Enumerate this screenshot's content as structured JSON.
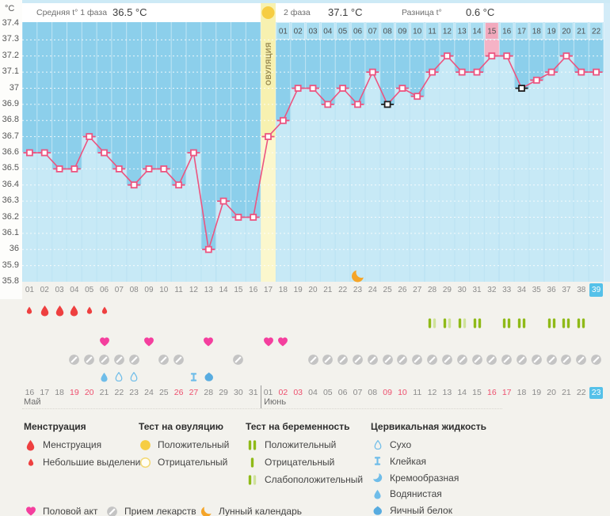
{
  "header": {
    "unit": "°C",
    "phase1_label": "Средняя t° 1 фаза",
    "phase1_value": "36.5 °C",
    "phase2_label": "2 фаза",
    "phase2_value": "37.1 °C",
    "diff_label": "Разница t°",
    "diff_value": "0.6 °C"
  },
  "chart_data": {
    "type": "line",
    "ylabel": "°C",
    "ylim": [
      35.8,
      37.4
    ],
    "yticks": [
      "37.4",
      "37.3",
      "37.2",
      "37.1",
      "37",
      "36.9",
      "36.8",
      "36.7",
      "36.6",
      "36.5",
      "36.4",
      "36.3",
      "36.2",
      "36.1",
      "36",
      "35.9",
      "35.8"
    ],
    "x_days": [
      "01",
      "02",
      "03",
      "04",
      "05",
      "06",
      "07",
      "08",
      "09",
      "10",
      "11",
      "12",
      "13",
      "14",
      "15",
      "16",
      "17",
      "18",
      "19",
      "20",
      "21",
      "22",
      "23",
      "24",
      "25",
      "26",
      "27",
      "28",
      "29",
      "30",
      "31",
      "32",
      "33",
      "34",
      "35",
      "36",
      "37",
      "38",
      "39"
    ],
    "temps": [
      36.6,
      36.6,
      36.5,
      36.5,
      36.7,
      36.6,
      36.5,
      36.4,
      36.5,
      36.5,
      36.4,
      36.6,
      36.0,
      36.3,
      36.2,
      36.2,
      36.7,
      36.8,
      37.0,
      37.0,
      36.9,
      37.0,
      36.9,
      37.1,
      36.9,
      37.0,
      36.95,
      37.1,
      37.2,
      37.1,
      37.1,
      37.2,
      37.2,
      37.0,
      37.05,
      37.1,
      37.2,
      37.1,
      37.1
    ],
    "excluded_marker_days": [
      25,
      34
    ],
    "ovulation_day": 17,
    "ovulation_label": "ОВУЛЯЦИЯ",
    "highlighted_column_day": 32,
    "today_column_day": 39,
    "moon_day": 23,
    "phase2_strip": {
      "labels": [
        "01",
        "02",
        "03",
        "04",
        "05",
        "06",
        "07",
        "08",
        "09",
        "10",
        "11",
        "12",
        "13",
        "14",
        "15",
        "16",
        "17",
        "18",
        "19",
        "20",
        "21",
        "22"
      ],
      "start_cycle_day": 18,
      "highlight_label": "15"
    },
    "colors": {
      "sky": "#8ccfeb",
      "bar": "#c7e9f6",
      "ovulation_band": "#f7f1b0",
      "ovulation_bar": "#fbf7cd",
      "pink_column": "#f5b3c6",
      "strip_cell": "#a8ddf1",
      "strip_cell_pink": "#f2a9bd",
      "line": "#ec5480",
      "excluded": "#1c1c1c",
      "ovulation_test": "#f6cd43",
      "moon": "#f5a529",
      "drop_red": "#ee4040",
      "heart_pink": "#f43f9e",
      "med_gray": "#c4c4c4",
      "test_dark": "#8fba18",
      "test_light": "#cfe29a",
      "cf_blue": "#6fbde9",
      "cf_blue_dark": "#58ace0",
      "weekend_red": "#ee4f6e",
      "today_bg": "#55c1e9"
    }
  },
  "event_rows": {
    "menstruation": [
      {
        "day": 1,
        "type": "light"
      },
      {
        "day": 2,
        "type": "heavy"
      },
      {
        "day": 3,
        "type": "heavy"
      },
      {
        "day": 4,
        "type": "heavy"
      },
      {
        "day": 5,
        "type": "light"
      },
      {
        "day": 6,
        "type": "light"
      }
    ],
    "pregnancy_tests": [
      {
        "day": 28,
        "result": "weak"
      },
      {
        "day": 29,
        "result": "weak"
      },
      {
        "day": 30,
        "result": "weak"
      },
      {
        "day": 31,
        "result": "positive"
      },
      {
        "day": 33,
        "result": "positive"
      },
      {
        "day": 34,
        "result": "positive"
      },
      {
        "day": 36,
        "result": "positive"
      },
      {
        "day": 37,
        "result": "positive"
      },
      {
        "day": 38,
        "result": "positive"
      }
    ],
    "intercourse_days": [
      6,
      9,
      13,
      17,
      18
    ],
    "medication_days": [
      4,
      5,
      6,
      7,
      8,
      10,
      11,
      15,
      20,
      21,
      22,
      23,
      24,
      25,
      26,
      27,
      28,
      29,
      30,
      31,
      32,
      33,
      34,
      35,
      36,
      37,
      38,
      39
    ],
    "cervical": [
      {
        "day": 6,
        "type": "watery"
      },
      {
        "day": 7,
        "type": "dry"
      },
      {
        "day": 8,
        "type": "dry"
      },
      {
        "day": 12,
        "type": "sticky"
      },
      {
        "day": 13,
        "type": "eggwhite"
      }
    ]
  },
  "calendar": {
    "months": [
      {
        "label": "Май"
      },
      {
        "label": "Июнь"
      }
    ],
    "dates": [
      {
        "label": "16"
      },
      {
        "label": "17"
      },
      {
        "label": "18"
      },
      {
        "label": "19",
        "red": true
      },
      {
        "label": "20",
        "red": true
      },
      {
        "label": "21"
      },
      {
        "label": "22"
      },
      {
        "label": "23"
      },
      {
        "label": "24"
      },
      {
        "label": "25"
      },
      {
        "label": "26",
        "red": true
      },
      {
        "label": "27",
        "red": true
      },
      {
        "label": "28"
      },
      {
        "label": "29"
      },
      {
        "label": "30"
      },
      {
        "label": "31"
      },
      {
        "label": "01"
      },
      {
        "label": "02",
        "red": true
      },
      {
        "label": "03",
        "red": true
      },
      {
        "label": "04"
      },
      {
        "label": "05"
      },
      {
        "label": "06"
      },
      {
        "label": "07"
      },
      {
        "label": "08"
      },
      {
        "label": "09",
        "red": true
      },
      {
        "label": "10",
        "red": true
      },
      {
        "label": "11"
      },
      {
        "label": "12"
      },
      {
        "label": "13"
      },
      {
        "label": "14"
      },
      {
        "label": "15"
      },
      {
        "label": "16",
        "red": true
      },
      {
        "label": "17",
        "red": true
      },
      {
        "label": "18"
      },
      {
        "label": "19"
      },
      {
        "label": "20"
      },
      {
        "label": "21"
      },
      {
        "label": "22"
      },
      {
        "label": "23",
        "today": true
      }
    ],
    "june_start_cycle_day": 17
  },
  "legend": {
    "sections": [
      {
        "title": "Менструация",
        "items": [
          {
            "icon": "drop-large",
            "label": "Менструация"
          },
          {
            "icon": "drop-small",
            "label": "Небольшие выделения"
          }
        ]
      },
      {
        "title": "Тест на овуляцию",
        "items": [
          {
            "icon": "circle-filled-yellow",
            "label": "Положительный"
          },
          {
            "icon": "circle-outline-yellow",
            "label": "Отрицательный"
          }
        ]
      },
      {
        "title": "Тест на беременность",
        "items": [
          {
            "icon": "test-positive",
            "label": "Положительный"
          },
          {
            "icon": "test-negative",
            "label": "Отрицательный"
          },
          {
            "icon": "test-weak",
            "label": "Слабоположительный"
          }
        ]
      },
      {
        "title": "Цервикальная жидкость",
        "items": [
          {
            "icon": "cf-dry",
            "label": "Сухо"
          },
          {
            "icon": "cf-sticky",
            "label": "Клейкая"
          },
          {
            "icon": "cf-creamy",
            "label": "Кремообразная"
          },
          {
            "icon": "cf-watery",
            "label": "Водянистая"
          },
          {
            "icon": "cf-eggwhite",
            "label": "Яичный белок"
          }
        ]
      }
    ],
    "footer_items": [
      {
        "icon": "heart",
        "label": "Половой акт"
      },
      {
        "icon": "medication",
        "label": "Прием лекарств"
      },
      {
        "icon": "moon",
        "label": "Лунный календарь"
      }
    ]
  }
}
